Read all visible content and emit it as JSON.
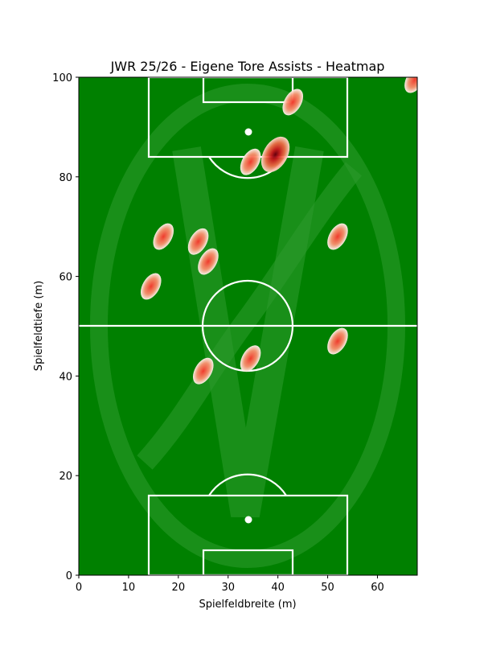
{
  "chart_data": {
    "type": "heatmap",
    "title": "JWR 25/26 - Eigene Tore Assists - Heatmap",
    "xlabel": "Spielfeldbreite (m)",
    "ylabel": "Spielfeldtiefe (m)",
    "xlim": [
      0,
      68
    ],
    "ylim": [
      0,
      100
    ],
    "xticks": [
      0,
      10,
      20,
      30,
      40,
      50,
      60
    ],
    "yticks": [
      0,
      20,
      40,
      60,
      80,
      100
    ],
    "grid": false,
    "colors": {
      "pitch": "#008000",
      "lines": "#ffffff",
      "watermark": "#2e9a2e",
      "heat_low": "#fde0d2",
      "heat_mid": "#ef3b2c",
      "heat_high": "#8b0000"
    },
    "points": [
      {
        "x": 67.5,
        "y": 99.5,
        "intensity": 0.6
      },
      {
        "x": 43,
        "y": 95,
        "intensity": 0.7
      },
      {
        "x": 39.5,
        "y": 84.5,
        "intensity": 1.0
      },
      {
        "x": 34.5,
        "y": 83,
        "intensity": 0.7
      },
      {
        "x": 17,
        "y": 68,
        "intensity": 0.7
      },
      {
        "x": 24,
        "y": 67,
        "intensity": 0.7
      },
      {
        "x": 26,
        "y": 63,
        "intensity": 0.7
      },
      {
        "x": 52,
        "y": 68,
        "intensity": 0.7
      },
      {
        "x": 14.5,
        "y": 58,
        "intensity": 0.7
      },
      {
        "x": 52,
        "y": 47,
        "intensity": 0.7
      },
      {
        "x": 34.5,
        "y": 43.5,
        "intensity": 0.7
      },
      {
        "x": 25,
        "y": 41,
        "intensity": 0.7
      }
    ]
  }
}
